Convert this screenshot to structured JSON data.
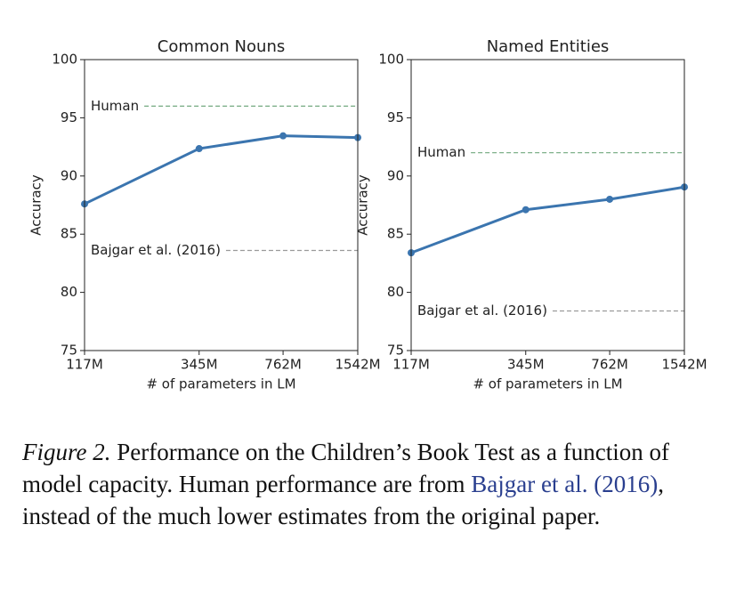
{
  "chart_data": [
    {
      "type": "line",
      "title": "Common Nouns",
      "x_label": "# of parameters in LM",
      "y_label": "Accuracy",
      "x": [
        117,
        345,
        762,
        1542
      ],
      "log_x": true,
      "xlim": [
        117,
        1542
      ],
      "xticks": [
        {
          "value": 117,
          "label": "117M"
        },
        {
          "value": 345,
          "label": "345M"
        },
        {
          "value": 762,
          "label": "762M"
        },
        {
          "value": 1542,
          "label": "1542M"
        }
      ],
      "ylim": [
        75,
        100
      ],
      "yticks": [
        75,
        80,
        85,
        90,
        95,
        100
      ],
      "series": [
        {
          "color": "#3b75af",
          "values": [
            87.6,
            92.35,
            93.45,
            93.3
          ]
        }
      ],
      "reference_lines": [
        {
          "label": "Human",
          "value": 96.0,
          "color": "#7fb08a"
        },
        {
          "label": "Bajgar et al. (2016)",
          "value": 83.6,
          "color": "#9a9a9a"
        }
      ]
    },
    {
      "type": "line",
      "title": "Named Entities",
      "x_label": "# of parameters in LM",
      "y_label": "Accuracy",
      "x": [
        117,
        345,
        762,
        1542
      ],
      "log_x": true,
      "xlim": [
        117,
        1542
      ],
      "xticks": [
        {
          "value": 117,
          "label": "117M"
        },
        {
          "value": 345,
          "label": "345M"
        },
        {
          "value": 762,
          "label": "762M"
        },
        {
          "value": 1542,
          "label": "1542M"
        }
      ],
      "ylim": [
        75,
        100
      ],
      "yticks": [
        75,
        80,
        85,
        90,
        95,
        100
      ],
      "series": [
        {
          "color": "#3b75af",
          "values": [
            83.4,
            87.1,
            88.0,
            89.05
          ]
        }
      ],
      "reference_lines": [
        {
          "label": "Human",
          "value": 92.0,
          "color": "#7fb08a"
        },
        {
          "label": "Bajgar et al. (2016)",
          "value": 78.4,
          "color": "#9a9a9a"
        }
      ]
    }
  ],
  "caption": [
    "Figure 2.",
    "Performance on the Children’s Book Test as a function of model capacity. Human performance are from",
    "Bajgar et al. (2016)",
    ", instead of the much lower estimates from the original paper."
  ]
}
